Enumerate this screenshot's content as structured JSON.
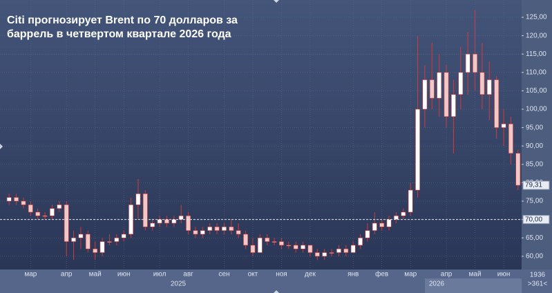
{
  "chart_data": {
    "type": "candlestick",
    "title": [
      "Citi прогнозирует Brent по 70 долларов за",
      "баррель в четвертом квартале 2026 года"
    ],
    "categories": [
      null,
      null,
      null,
      "мар",
      null,
      null,
      null,
      null,
      "апр",
      null,
      null,
      null,
      "май",
      null,
      null,
      null,
      "июн",
      null,
      null,
      null,
      null,
      "июл",
      null,
      null,
      null,
      "авг",
      null,
      null,
      null,
      null,
      "сен",
      null,
      null,
      null,
      "окт",
      null,
      null,
      null,
      "ноя",
      null,
      null,
      null,
      "дек",
      null,
      null,
      null,
      null,
      null,
      "янв",
      null,
      null,
      null,
      "фев",
      null,
      null,
      null,
      "мар",
      null,
      null,
      null,
      null,
      "апр",
      null,
      null,
      null,
      "май",
      null,
      null,
      null,
      "июн",
      null,
      null
    ],
    "open": [
      75,
      76,
      75,
      74,
      72,
      71,
      71,
      73,
      74,
      64,
      65,
      66,
      62,
      61,
      64,
      64,
      65,
      66,
      74,
      77,
      68,
      69,
      70,
      69,
      70,
      71,
      67,
      66,
      67,
      68,
      67,
      68,
      67,
      66,
      63,
      61,
      65,
      64,
      64,
      63,
      63,
      62,
      63,
      61,
      60,
      61,
      61,
      62,
      61,
      63,
      65,
      67,
      69,
      68,
      70,
      71,
      72,
      78,
      100,
      108,
      103,
      110,
      98,
      104,
      110,
      115,
      110,
      104,
      108,
      95,
      96,
      88
    ],
    "high": [
      77,
      77,
      76,
      75,
      73,
      72,
      74,
      75,
      75,
      67,
      68,
      67,
      64,
      65,
      66,
      66,
      67,
      76,
      81,
      78,
      70,
      71,
      71,
      71,
      74,
      72,
      68,
      68,
      69,
      69,
      69,
      70,
      69,
      67,
      65,
      66,
      66,
      65,
      65,
      64,
      64,
      64,
      63,
      62,
      62,
      62,
      63,
      63,
      64,
      66,
      69,
      72,
      70,
      71,
      72,
      73,
      80,
      120,
      112,
      118,
      115,
      112,
      108,
      117,
      121,
      127,
      118,
      113,
      109,
      100,
      98,
      89
    ],
    "low": [
      74,
      74,
      73,
      71,
      70,
      70,
      70,
      72,
      60,
      59,
      62,
      61,
      59,
      60,
      63,
      63,
      64,
      65,
      70,
      67,
      67,
      68,
      68,
      68,
      69,
      66,
      65,
      65,
      66,
      66,
      66,
      66,
      65,
      62,
      60,
      61,
      63,
      63,
      62,
      62,
      61,
      61,
      60,
      59,
      59,
      60,
      60,
      60,
      61,
      62,
      64,
      66,
      67,
      67,
      69,
      70,
      71,
      76,
      95,
      100,
      98,
      95,
      88,
      100,
      104,
      105,
      100,
      97,
      92,
      90,
      85,
      78
    ],
    "close": [
      76,
      75,
      74,
      72,
      71,
      71,
      73,
      74,
      64,
      65,
      66,
      62,
      61,
      64,
      64,
      65,
      66,
      74,
      77,
      68,
      69,
      70,
      69,
      70,
      71,
      67,
      66,
      67,
      68,
      67,
      68,
      67,
      66,
      63,
      61,
      65,
      64,
      64,
      63,
      63,
      62,
      63,
      61,
      60,
      61,
      61,
      62,
      61,
      63,
      65,
      67,
      69,
      68,
      70,
      71,
      72,
      78,
      100,
      108,
      103,
      110,
      98,
      104,
      110,
      115,
      110,
      104,
      108,
      95,
      96,
      88,
      79.31
    ],
    "up_color": "#ffffff",
    "down_color": "#f0c8c8",
    "wick_color": "#d23c3c",
    "ylim": [
      56.4,
      129.7
    ],
    "yticks": [
      {
        "value": 60,
        "label": "60,00"
      },
      {
        "value": 65,
        "label": "65,00"
      },
      {
        "value": 70,
        "label": "70,00"
      },
      {
        "value": 75,
        "label": "75,00"
      },
      {
        "value": 80,
        "label": "80,00"
      },
      {
        "value": 85,
        "label": "85,00"
      },
      {
        "value": 90,
        "label": "90,00"
      },
      {
        "value": 95,
        "label": "95,00"
      },
      {
        "value": 100,
        "label": "100,00"
      },
      {
        "value": 105,
        "label": "105,00"
      },
      {
        "value": 110,
        "label": "110,00"
      },
      {
        "value": 115,
        "label": "115,00"
      },
      {
        "value": 120,
        "label": "120,00"
      },
      {
        "value": 125,
        "label": "125,00"
      }
    ],
    "grid": true,
    "price_markers": [
      {
        "value": 70,
        "label": "70,00"
      },
      {
        "value": 79.31,
        "label": "79,31"
      }
    ],
    "year_labels": [
      "2025",
      "2026"
    ],
    "corner_labels": [
      "1936",
      ">361<"
    ]
  }
}
